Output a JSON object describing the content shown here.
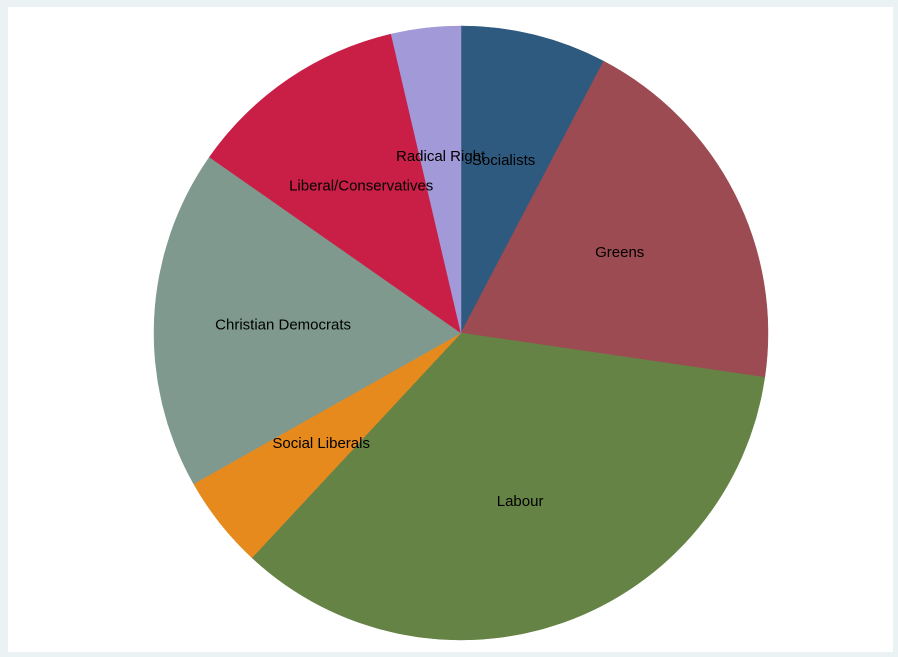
{
  "chart_data": {
    "type": "pie",
    "title": "",
    "start_angle_deg": 90,
    "direction": "clockwise",
    "legend": "none",
    "slices": [
      {
        "label": "Socialists",
        "value": 8.0,
        "color": "#2f5a7f"
      },
      {
        "label": "Greens",
        "value": 20.4,
        "color": "#9b4b51"
      },
      {
        "label": "Labour",
        "value": 36.0,
        "color": "#658344"
      },
      {
        "label": "Social Liberals",
        "value": 5.1,
        "color": "#e68a1e"
      },
      {
        "label": "Christian Democrats",
        "value": 18.6,
        "color": "#7f998e"
      },
      {
        "label": "Liberal/Conservatives",
        "value": 12.1,
        "color": "#c91f46"
      },
      {
        "label": "Radical Right",
        "value": 3.8,
        "color": "#a299d8"
      }
    ]
  }
}
